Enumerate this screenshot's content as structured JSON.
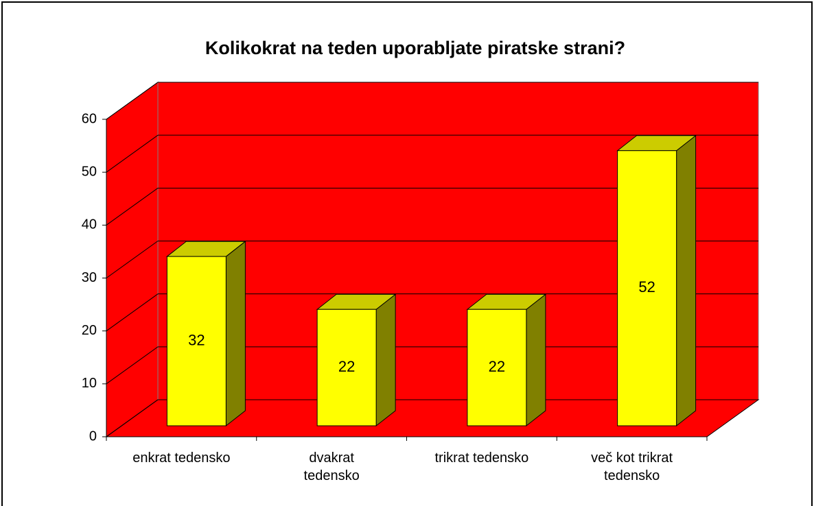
{
  "chart_data": {
    "type": "bar3d",
    "title": "Kolikokrat na teden uporabljate piratske strani?",
    "categories": [
      "enkrat tedensko",
      "dvakrat tedensko",
      "trikrat tedensko",
      "več kot trikrat tedensko"
    ],
    "values": [
      32,
      22,
      22,
      52
    ],
    "color": "#ffff00",
    "wall_color": "#ff0000",
    "ylim": [
      0,
      60
    ],
    "yticks": [
      0,
      10,
      20,
      30,
      40,
      50,
      60
    ],
    "grid": true
  }
}
